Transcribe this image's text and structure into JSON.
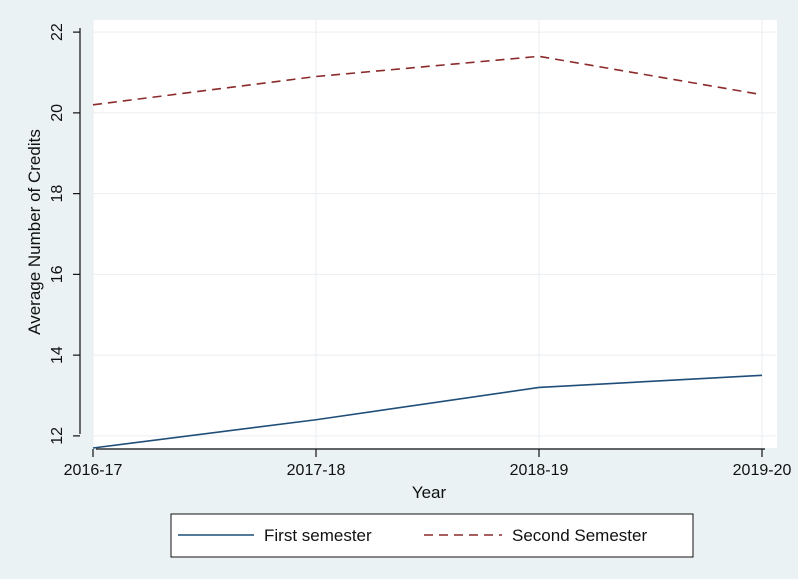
{
  "chart_data": {
    "type": "line",
    "xlabel": "Year",
    "ylabel": "Average Number of Credits",
    "categories": [
      "2016-17",
      "2017-18",
      "2018-19",
      "2019-20"
    ],
    "ylim": [
      11.7,
      22.3
    ],
    "yticks": [
      12,
      14,
      16,
      18,
      20,
      22
    ],
    "grid": true,
    "legend_position": "bottom",
    "series": [
      {
        "name": "First semester",
        "values": [
          11.7,
          12.4,
          13.2,
          13.5
        ],
        "color": "#1f4e79",
        "style": "solid"
      },
      {
        "name": "Second Semester",
        "values": [
          20.2,
          20.9,
          21.4,
          20.45
        ],
        "color": "#8b2a2a",
        "style": "dashed"
      }
    ]
  },
  "colors": {
    "frame_background": "#eaf2f3",
    "plot_background": "#ffffff",
    "grid": "#e9eef0"
  }
}
